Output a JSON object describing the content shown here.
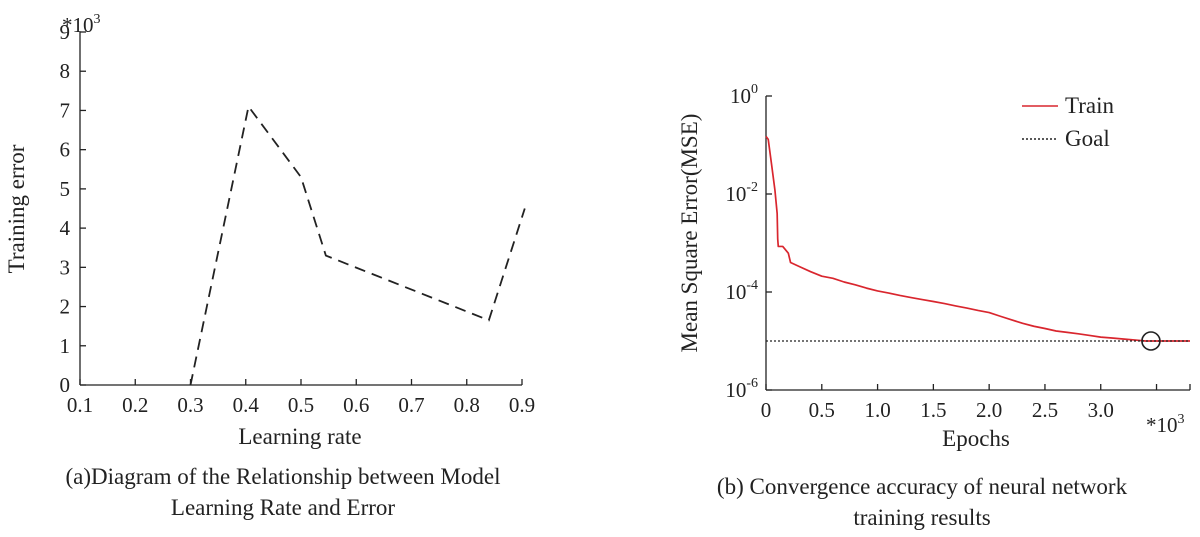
{
  "chart_data": [
    {
      "type": "line",
      "x": [
        0.3,
        0.405,
        0.5,
        0.545,
        0.84,
        0.905
      ],
      "series": [
        {
          "values": [
            0,
            7.1,
            5.3,
            3.3,
            1.65,
            4.5
          ],
          "style": "dashed",
          "color": "#222222"
        }
      ],
      "xlabel": "Learning rate",
      "ylabel": "Training error",
      "y_multiplier": "*10",
      "y_multiplier_exp": "3",
      "xlim": [
        0.1,
        0.9
      ],
      "ylim": [
        0,
        9
      ],
      "x_ticks": [
        "0.1",
        "0.2",
        "0.3",
        "0.4",
        "0.5",
        "0.6",
        "0.7",
        "0.8",
        "0.9"
      ],
      "y_ticks": [
        "0",
        "1",
        "2",
        "3",
        "4",
        "5",
        "6",
        "7",
        "8",
        "9"
      ],
      "caption_lines": [
        "(a)Diagram of the Relationship between Model",
        "Learning Rate and Error"
      ],
      "grid": false
    },
    {
      "type": "line",
      "xlabel": "Epochs",
      "ylabel": "Mean Square Error(MSE)",
      "x_multiplier": "*10",
      "x_multiplier_exp": "3",
      "y_scale": "log",
      "xlim": [
        0,
        3.8
      ],
      "ylim_exp": [
        -6,
        0
      ],
      "x_ticks": [
        "0",
        "0.5",
        "1.0",
        "1.5",
        "2.0",
        "2.5",
        "3.0"
      ],
      "y_tick_base": "10",
      "y_tick_exps": [
        "-6",
        "-4",
        "-2",
        "0"
      ],
      "legend": {
        "position": "top-right",
        "entries": [
          "Train",
          "Goal"
        ]
      },
      "series": [
        {
          "name": "Train",
          "color": "#d9262e",
          "x": [
            0,
            0.02,
            0.05,
            0.08,
            0.1,
            0.105,
            0.11,
            0.15,
            0.2,
            0.22,
            0.3,
            0.4,
            0.5,
            0.6,
            0.7,
            0.8,
            0.9,
            1.0,
            1.1,
            1.2,
            1.3,
            1.4,
            1.5,
            1.6,
            1.7,
            1.8,
            1.9,
            2.0,
            2.1,
            2.2,
            2.3,
            2.4,
            2.5,
            2.6,
            2.7,
            2.8,
            2.9,
            3.0,
            3.1,
            3.2,
            3.3,
            3.4,
            3.5,
            3.6,
            3.7,
            3.8
          ],
          "values": [
            0.15,
            0.13,
            0.04,
            0.012,
            0.004,
            0.0012,
            0.00085,
            0.00085,
            0.00062,
            0.0004,
            0.00033,
            0.00026,
            0.00021,
            0.00019,
            0.00016,
            0.00014,
            0.00012,
            0.000105,
            9.5e-05,
            8.5e-05,
            7.7e-05,
            7e-05,
            6.4e-05,
            5.8e-05,
            5.2e-05,
            4.7e-05,
            4.2e-05,
            3.8e-05,
            3.2e-05,
            2.7e-05,
            2.3e-05,
            2e-05,
            1.8e-05,
            1.6e-05,
            1.5e-05,
            1.4e-05,
            1.3e-05,
            1.2e-05,
            1.15e-05,
            1.1e-05,
            1.05e-05,
            1e-05,
            1e-05,
            1e-05,
            1e-05,
            1e-05
          ]
        },
        {
          "name": "Goal",
          "color": "#222222",
          "style": "dotted",
          "y": 1e-05
        }
      ],
      "marker": {
        "type": "circle",
        "x": 3.45,
        "y": 1e-05
      },
      "caption_lines": [
        "(b) Convergence accuracy of neural network",
        "training results"
      ],
      "grid": false
    }
  ]
}
